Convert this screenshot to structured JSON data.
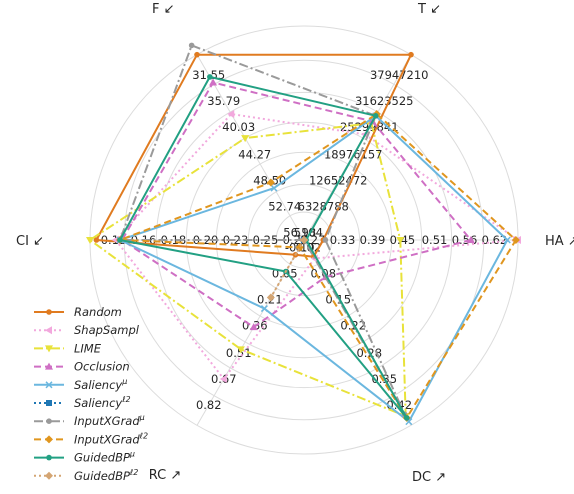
{
  "chart_data": {
    "type": "radar",
    "axes": [
      {
        "id": "T",
        "label": "T ↙",
        "direction": "lower-better",
        "tick_labels": [
          "5104",
          "6328788",
          "12652472",
          "18976157",
          "25299841",
          "31623525",
          "37947210"
        ]
      },
      {
        "id": "HA",
        "label": "HA ↗",
        "direction": "higher-better",
        "tick_labels": [
          "0.27",
          "0.33",
          "0.39",
          "0.45",
          "0.51",
          "0.56",
          "0.62"
        ]
      },
      {
        "id": "DC",
        "label": "DC ↗",
        "direction": "higher-better",
        "tick_labels": [
          "0.02",
          "0.08",
          "0.15",
          "0.22",
          "0.28",
          "0.35",
          "0.42"
        ]
      },
      {
        "id": "RC",
        "label": "RC ↗",
        "direction": "higher-better",
        "tick_labels": [
          "-0.10",
          "0.05",
          "0.21",
          "0.36",
          "0.51",
          "0.67",
          "0.82"
        ]
      },
      {
        "id": "CI",
        "label": "CI ↙",
        "direction": "lower-better",
        "tick_labels": [
          "0.28",
          "0.25",
          "0.23",
          "0.20",
          "0.18",
          "0.16",
          "0.13"
        ]
      },
      {
        "id": "F",
        "label": "F ↙",
        "direction": "lower-better",
        "tick_labels": [
          "56.98",
          "52.74",
          "48.50",
          "44.27",
          "40.03",
          "35.79",
          "31.55"
        ]
      }
    ],
    "scale_note": "each series value is given as the normalized radius 0-1 on the displayed tick scale",
    "series": [
      {
        "name": "Random",
        "sup": "",
        "color": "#e07b20",
        "style": "solid",
        "marker": "circle",
        "values": [
          1.0,
          0.09,
          0.09,
          0.08,
          0.97,
          1.0
        ]
      },
      {
        "name": "ShapSampl",
        "sup": "",
        "color": "#f2a8dd",
        "style": "dotted",
        "marker": "triangle-left",
        "values": [
          0.57,
          1.0,
          0.1,
          0.75,
          0.88,
          0.68
        ]
      },
      {
        "name": "LIME",
        "sup": "",
        "color": "#e8e23a",
        "style": "dashdot",
        "marker": "triangle-down",
        "values": [
          0.63,
          0.45,
          0.95,
          0.59,
          1.0,
          0.55
        ]
      },
      {
        "name": "Occlusion",
        "sup": "",
        "color": "#cf6fc4",
        "style": "dashed",
        "marker": "triangle-up",
        "values": [
          0.64,
          0.78,
          0.2,
          0.47,
          0.85,
          0.85
        ]
      },
      {
        "name": "Saliency",
        "sup": "μ",
        "color": "#6bb7df",
        "style": "solid",
        "marker": "x",
        "values": [
          0.67,
          0.95,
          0.98,
          0.37,
          0.86,
          0.28
        ]
      },
      {
        "name": "Saliency",
        "sup": "ℓ2",
        "color": "#1f77b4",
        "style": "dotted",
        "marker": "square",
        "values": [
          0.0,
          0.0,
          0.0,
          0.0,
          0.0,
          0.0
        ]
      },
      {
        "name": "InputXGrad",
        "sup": "μ",
        "color": "#9a9a9a",
        "style": "dashdot",
        "marker": "circle",
        "values": [
          0.67,
          0.1,
          0.94,
          0.0,
          0.86,
          1.05
        ]
      },
      {
        "name": "InputXGrad",
        "sup": "ℓ2",
        "color": "#e0961f",
        "style": "dashed",
        "marker": "diamond",
        "values": [
          0.68,
          0.99,
          0.96,
          0.04,
          0.86,
          0.31
        ]
      },
      {
        "name": "GuidedBP",
        "sup": "μ",
        "color": "#22a083",
        "style": "solid",
        "marker": "circle",
        "values": [
          0.67,
          0.01,
          0.96,
          0.17,
          0.86,
          0.88
        ]
      },
      {
        "name": "GuidedBP",
        "sup": "ℓ2",
        "color": "#d4a573",
        "style": "dotted",
        "marker": "diamond",
        "values": [
          0.0,
          0.0,
          0.0,
          0.31,
          0.0,
          0.0
        ]
      }
    ],
    "grid": true,
    "legend_position": "lower-left"
  }
}
